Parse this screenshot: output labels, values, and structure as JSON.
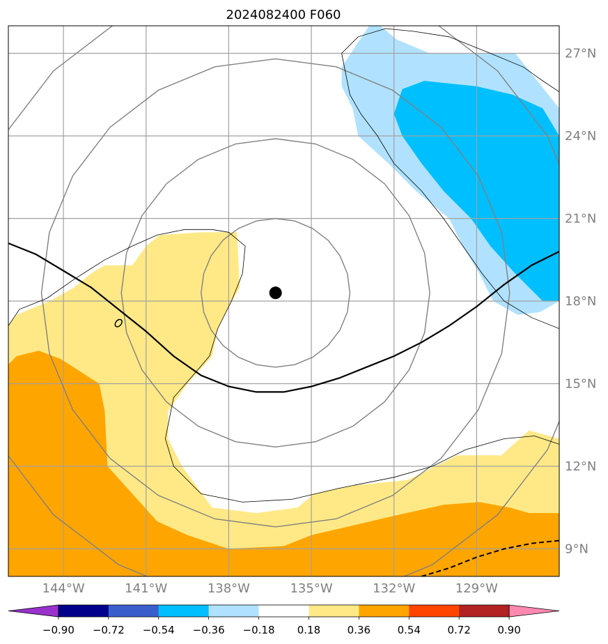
{
  "chart_data": {
    "type": "map",
    "title": "2024082400 F060",
    "lon_range": [
      -146.0,
      -126.0
    ],
    "lat_range": [
      8.0,
      28.0
    ],
    "xticks": [
      -144,
      -141,
      -138,
      -135,
      -132,
      -129
    ],
    "xtick_labels": [
      "144°W",
      "141°W",
      "138°W",
      "135°W",
      "132°W",
      "129°W"
    ],
    "yticks": [
      9,
      12,
      15,
      18,
      21,
      24,
      27
    ],
    "ytick_labels": [
      "9°N",
      "12°N",
      "15°N",
      "18°N",
      "21°N",
      "24°N",
      "27°N"
    ],
    "grid": true,
    "center_marker": {
      "lon": -136.3,
      "lat": 18.3
    },
    "colorbar": {
      "levels": [
        -0.9,
        -0.72,
        -0.54,
        -0.36,
        -0.18,
        0.18,
        0.36,
        0.54,
        0.72,
        0.9
      ],
      "tick_labels": [
        "−0.90",
        "−0.72",
        "−0.54",
        "−0.36",
        "−0.18",
        "0.18",
        "0.36",
        "0.54",
        "0.72",
        "0.90"
      ],
      "colors": [
        "#9932cc",
        "#00008b",
        "#3a5fcd",
        "#00bfff",
        "#b0e2ff",
        "#ffffff",
        "#ffe986",
        "#ffa500",
        "#ff4500",
        "#b22222",
        "#ff88b0"
      ],
      "extend": "both"
    },
    "filled_regions": [
      {
        "level": 0.18,
        "color": "#ffe986",
        "poly": [
          [
            -146,
            17.1
          ],
          [
            -145.7,
            17.5
          ],
          [
            -144.5,
            18.0
          ],
          [
            -143.6,
            18.5
          ],
          [
            -143.0,
            19.0
          ],
          [
            -142.5,
            19.3
          ],
          [
            -141.5,
            19.3
          ],
          [
            -141.0,
            20.0
          ],
          [
            -140.5,
            20.4
          ],
          [
            -139.0,
            20.5
          ],
          [
            -137.7,
            20.5
          ],
          [
            -137.6,
            18.5
          ],
          [
            -138.0,
            17.8
          ],
          [
            -138.4,
            17.0
          ],
          [
            -138.6,
            16.0
          ],
          [
            -139.5,
            15.0
          ],
          [
            -140.2,
            14.0
          ],
          [
            -140.2,
            13.0
          ],
          [
            -139.7,
            12.0
          ],
          [
            -138.6,
            10.5
          ],
          [
            -137.0,
            10.3
          ],
          [
            -135.5,
            10.5
          ],
          [
            -134.9,
            11.0
          ],
          [
            -133.5,
            11.3
          ],
          [
            -131.5,
            11.5
          ],
          [
            -130.5,
            12.0
          ],
          [
            -129.7,
            12.4
          ],
          [
            -128.1,
            12.4
          ],
          [
            -127.1,
            13.3
          ],
          [
            -126.0,
            13.0
          ],
          [
            -126,
            8
          ],
          [
            -146,
            8
          ]
        ]
      },
      {
        "level": 0.36,
        "color": "#ffa500",
        "poly": [
          [
            -146,
            15.7
          ],
          [
            -145.7,
            16.0
          ],
          [
            -144.9,
            16.2
          ],
          [
            -144.1,
            15.9
          ],
          [
            -142.7,
            15.0
          ],
          [
            -142.5,
            14.0
          ],
          [
            -142.4,
            12.0
          ],
          [
            -141.5,
            11.0
          ],
          [
            -140.6,
            10.0
          ],
          [
            -139.5,
            9.5
          ],
          [
            -138.0,
            9.0
          ],
          [
            -136.0,
            9.1
          ],
          [
            -135.0,
            9.5
          ],
          [
            -133.7,
            9.8
          ],
          [
            -132.0,
            10.2
          ],
          [
            -130.2,
            10.6
          ],
          [
            -128.9,
            10.7
          ],
          [
            -127.8,
            10.5
          ],
          [
            -127.1,
            10.3
          ],
          [
            -126.0,
            10.3
          ],
          [
            -126,
            8
          ],
          [
            -146,
            8
          ]
        ]
      },
      {
        "level": -0.18,
        "color": "#b0e2ff",
        "poly": [
          [
            -132.9,
            28.0
          ],
          [
            -133.9,
            26.5
          ],
          [
            -133.9,
            25.8
          ],
          [
            -133.5,
            25.0
          ],
          [
            -133.3,
            24.0
          ],
          [
            -132.2,
            23.0
          ],
          [
            -131.2,
            22.0
          ],
          [
            -130.0,
            21.0
          ],
          [
            -129.5,
            20.0
          ],
          [
            -128.9,
            19.0
          ],
          [
            -128.4,
            18.0
          ],
          [
            -127.5,
            17.5
          ],
          [
            -126.7,
            17.6
          ],
          [
            -126.0,
            18.0
          ],
          [
            -126.0,
            25.0
          ],
          [
            -126.8,
            26.0
          ],
          [
            -127.6,
            27.0
          ],
          [
            -128.7,
            27.0
          ],
          [
            -130.7,
            27.0
          ],
          [
            -131.9,
            27.5
          ],
          [
            -132.5,
            28.0
          ]
        ]
      },
      {
        "level": -0.36,
        "color": "#00bfff",
        "poly": [
          [
            -132.0,
            24.8
          ],
          [
            -131.7,
            24.0
          ],
          [
            -131.0,
            23.0
          ],
          [
            -130.2,
            22.0
          ],
          [
            -129.2,
            21.0
          ],
          [
            -128.5,
            20.0
          ],
          [
            -127.6,
            19.0
          ],
          [
            -126.6,
            18.0
          ],
          [
            -126.0,
            18.0
          ],
          [
            -126.0,
            24.0
          ],
          [
            -126.6,
            25.0
          ],
          [
            -127.7,
            25.5
          ],
          [
            -129.0,
            25.8
          ],
          [
            -130.9,
            26.0
          ],
          [
            -131.7,
            25.7
          ]
        ]
      }
    ],
    "contour_lines": [
      {
        "name": "thin-outline-a",
        "color": "#000000",
        "width": 0.8,
        "pts": [
          [
            -146,
            17.1
          ],
          [
            -145.6,
            17.7
          ],
          [
            -144.6,
            18.1
          ],
          [
            -143.6,
            18.8
          ],
          [
            -142.5,
            19.5
          ],
          [
            -141.5,
            20.0
          ],
          [
            -140.6,
            20.4
          ],
          [
            -139.6,
            20.6
          ],
          [
            -138.6,
            20.6
          ],
          [
            -138.0,
            20.5
          ],
          [
            -137.4,
            20.0
          ],
          [
            -137.5,
            19.0
          ],
          [
            -137.9,
            18.0
          ],
          [
            -138.4,
            17.0
          ],
          [
            -138.7,
            16.0
          ],
          [
            -139.3,
            15.3
          ],
          [
            -140.0,
            14.5
          ],
          [
            -140.3,
            13.0
          ],
          [
            -140.0,
            12.0
          ],
          [
            -139.0,
            11.0
          ],
          [
            -137.5,
            10.7
          ],
          [
            -135.7,
            10.8
          ],
          [
            -134.0,
            11.2
          ],
          [
            -132.0,
            11.6
          ],
          [
            -130.6,
            12.0
          ],
          [
            -129.4,
            12.6
          ],
          [
            -128.0,
            13.0
          ],
          [
            -126.9,
            13.1
          ],
          [
            -126.0,
            12.8
          ]
        ]
      },
      {
        "name": "thin-outline-b",
        "color": "#000000",
        "width": 0.8,
        "pts": [
          [
            -133.9,
            27.0
          ],
          [
            -133.3,
            27.6
          ],
          [
            -132.3,
            27.9
          ],
          [
            -131.3,
            27.8
          ],
          [
            -130.0,
            27.6
          ],
          [
            -128.5,
            27.0
          ],
          [
            -127.3,
            26.5
          ],
          [
            -126.6,
            26.0
          ],
          [
            -126.0,
            25.6
          ]
        ]
      },
      {
        "name": "thin-outline-c",
        "color": "#000000",
        "width": 0.8,
        "pts": [
          [
            -133.9,
            27.0
          ],
          [
            -133.6,
            25.5
          ],
          [
            -133.2,
            24.8
          ],
          [
            -132.6,
            24.0
          ],
          [
            -132.0,
            23.0
          ],
          [
            -131.0,
            22.0
          ],
          [
            -130.2,
            21.0
          ],
          [
            -129.5,
            20.0
          ],
          [
            -128.8,
            19.0
          ],
          [
            -128.0,
            18.0
          ],
          [
            -127.0,
            17.4
          ],
          [
            -126.0,
            17.0
          ]
        ]
      },
      {
        "name": "thick-solid-curve",
        "color": "#000000",
        "width": 2.2,
        "pts": [
          [
            -146,
            20.1
          ],
          [
            -145.0,
            19.7
          ],
          [
            -144.0,
            19.1
          ],
          [
            -143.0,
            18.5
          ],
          [
            -142.0,
            17.7
          ],
          [
            -141.0,
            16.9
          ],
          [
            -140.0,
            16.0
          ],
          [
            -139.0,
            15.3
          ],
          [
            -138.0,
            14.9
          ],
          [
            -137.0,
            14.7
          ],
          [
            -136.0,
            14.7
          ],
          [
            -135.0,
            14.9
          ],
          [
            -134.0,
            15.2
          ],
          [
            -133.0,
            15.6
          ],
          [
            -132.0,
            16.0
          ],
          [
            -131.0,
            16.5
          ],
          [
            -130.0,
            17.1
          ],
          [
            -129.0,
            17.8
          ],
          [
            -128.0,
            18.6
          ],
          [
            -127.0,
            19.3
          ],
          [
            -126.0,
            19.8
          ]
        ]
      },
      {
        "name": "thick-dashed-curve",
        "color": "#000000",
        "width": 2.0,
        "dash": true,
        "pts": [
          [
            -131.0,
            8.0
          ],
          [
            -130.0,
            8.3
          ],
          [
            -129.0,
            8.7
          ],
          [
            -128.0,
            9.0
          ],
          [
            -127.0,
            9.2
          ],
          [
            -126.0,
            9.3
          ]
        ]
      }
    ],
    "small_ellipse": {
      "lon": -142.0,
      "lat": 17.2
    },
    "range_rings_deg": [
      2.7,
      5.6,
      8.5,
      11.4
    ],
    "ring_color": "#808080"
  }
}
